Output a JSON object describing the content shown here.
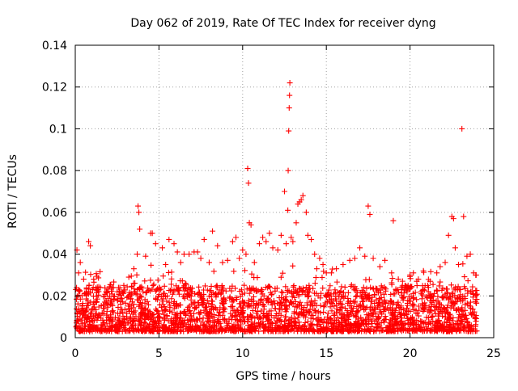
{
  "chart_data": {
    "type": "scatter",
    "title": "Day 062 of 2019, Rate Of TEC Index for receiver dyng",
    "xlabel": "GPS time / hours",
    "ylabel": "ROTI / TECUs",
    "xlim": [
      0,
      25
    ],
    "ylim": [
      0,
      0.14
    ],
    "x_ticks": [
      0,
      5,
      10,
      15,
      20,
      25
    ],
    "x_tick_labels": [
      "0",
      "5",
      "10",
      "15",
      "20",
      "25"
    ],
    "y_ticks": [
      0,
      0.02,
      0.04,
      0.06,
      0.08,
      0.1,
      0.12,
      0.14
    ],
    "y_tick_labels": [
      "0",
      "0.02",
      "0.04",
      "0.06",
      "0.08",
      "0.1",
      "0.12",
      "0.14"
    ],
    "grid": true,
    "marker": "+",
    "color": "#ff0000",
    "data_time_range_hours": [
      0,
      24
    ],
    "typical_band": [
      0.003,
      0.025
    ],
    "series": [
      {
        "name": "ROTI",
        "points": [
          [
            0.1,
            0.042
          ],
          [
            0.2,
            0.031
          ],
          [
            0.3,
            0.036
          ],
          [
            0.5,
            0.028
          ],
          [
            0.8,
            0.046
          ],
          [
            0.9,
            0.044
          ],
          [
            1.1,
            0.028
          ],
          [
            1.5,
            0.024
          ],
          [
            1.9,
            0.022
          ],
          [
            2.5,
            0.022
          ],
          [
            2.9,
            0.025
          ],
          [
            3.2,
            0.029
          ],
          [
            3.5,
            0.033
          ],
          [
            3.7,
            0.04
          ],
          [
            3.75,
            0.063
          ],
          [
            3.8,
            0.06
          ],
          [
            3.85,
            0.052
          ],
          [
            4.2,
            0.039
          ],
          [
            4.5,
            0.05
          ],
          [
            4.6,
            0.05
          ],
          [
            4.8,
            0.045
          ],
          [
            5.2,
            0.043
          ],
          [
            5.4,
            0.035
          ],
          [
            5.6,
            0.047
          ],
          [
            5.9,
            0.045
          ],
          [
            6.1,
            0.041
          ],
          [
            6.3,
            0.036
          ],
          [
            6.5,
            0.04
          ],
          [
            6.8,
            0.04
          ],
          [
            7.1,
            0.041
          ],
          [
            7.3,
            0.041
          ],
          [
            7.5,
            0.038
          ],
          [
            7.7,
            0.047
          ],
          [
            8.0,
            0.036
          ],
          [
            8.2,
            0.051
          ],
          [
            8.5,
            0.044
          ],
          [
            8.8,
            0.036
          ],
          [
            9.1,
            0.037
          ],
          [
            9.4,
            0.046
          ],
          [
            9.6,
            0.048
          ],
          [
            9.8,
            0.038
          ],
          [
            10.0,
            0.042
          ],
          [
            10.2,
            0.04
          ],
          [
            10.3,
            0.081
          ],
          [
            10.35,
            0.074
          ],
          [
            10.4,
            0.055
          ],
          [
            10.5,
            0.054
          ],
          [
            10.7,
            0.036
          ],
          [
            11.0,
            0.045
          ],
          [
            11.2,
            0.048
          ],
          [
            11.4,
            0.046
          ],
          [
            11.6,
            0.05
          ],
          [
            11.8,
            0.043
          ],
          [
            12.1,
            0.042
          ],
          [
            12.3,
            0.049
          ],
          [
            12.5,
            0.07
          ],
          [
            12.6,
            0.045
          ],
          [
            12.7,
            0.061
          ],
          [
            12.72,
            0.08
          ],
          [
            12.75,
            0.099
          ],
          [
            12.78,
            0.11
          ],
          [
            12.8,
            0.116
          ],
          [
            12.82,
            0.122
          ],
          [
            12.9,
            0.048
          ],
          [
            13.0,
            0.046
          ],
          [
            13.2,
            0.055
          ],
          [
            13.3,
            0.064
          ],
          [
            13.4,
            0.065
          ],
          [
            13.5,
            0.066
          ],
          [
            13.6,
            0.068
          ],
          [
            13.8,
            0.06
          ],
          [
            13.9,
            0.049
          ],
          [
            14.1,
            0.047
          ],
          [
            14.3,
            0.04
          ],
          [
            14.6,
            0.038
          ],
          [
            14.8,
            0.035
          ],
          [
            15.0,
            0.031
          ],
          [
            15.3,
            0.031
          ],
          [
            15.6,
            0.033
          ],
          [
            16.0,
            0.035
          ],
          [
            16.4,
            0.037
          ],
          [
            16.7,
            0.038
          ],
          [
            17.0,
            0.043
          ],
          [
            17.3,
            0.039
          ],
          [
            17.5,
            0.063
          ],
          [
            17.6,
            0.059
          ],
          [
            17.8,
            0.038
          ],
          [
            18.2,
            0.034
          ],
          [
            18.5,
            0.037
          ],
          [
            18.9,
            0.031
          ],
          [
            19.0,
            0.056
          ],
          [
            19.3,
            0.028
          ],
          [
            19.7,
            0.025
          ],
          [
            20.0,
            0.03
          ],
          [
            20.2,
            0.031
          ],
          [
            20.5,
            0.028
          ],
          [
            20.8,
            0.032
          ],
          [
            21.2,
            0.027
          ],
          [
            21.6,
            0.031
          ],
          [
            21.8,
            0.034
          ],
          [
            22.1,
            0.036
          ],
          [
            22.3,
            0.049
          ],
          [
            22.5,
            0.058
          ],
          [
            22.6,
            0.057
          ],
          [
            22.7,
            0.043
          ],
          [
            22.9,
            0.035
          ],
          [
            23.1,
            0.1
          ],
          [
            23.2,
            0.058
          ],
          [
            23.4,
            0.039
          ],
          [
            23.6,
            0.04
          ],
          [
            23.8,
            0.031
          ],
          [
            23.95,
            0.03
          ]
        ]
      }
    ]
  }
}
